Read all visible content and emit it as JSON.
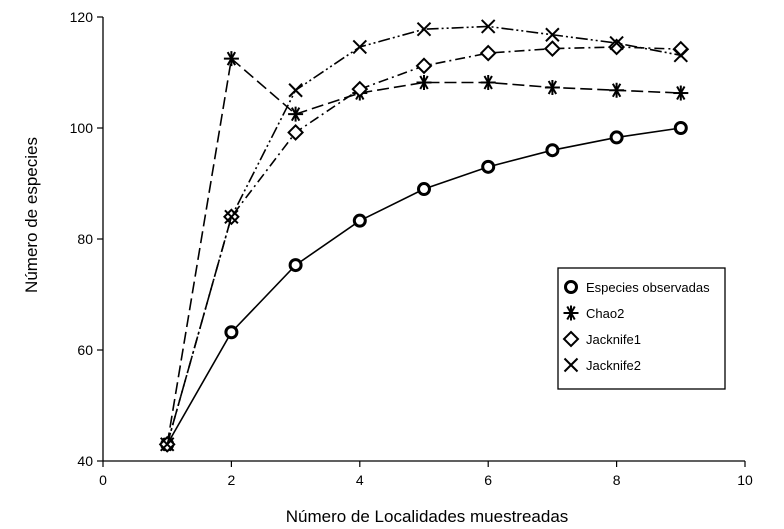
{
  "chart_data": {
    "type": "line",
    "title": "",
    "xlabel": "Número de Localidades muestreadas",
    "ylabel": "Número de especies",
    "xlim": [
      0,
      10
    ],
    "ylim": [
      40,
      120
    ],
    "xticks": [
      0,
      2,
      4,
      6,
      8,
      10
    ],
    "yticks": [
      40,
      60,
      80,
      100,
      120
    ],
    "grid": false,
    "legend_position": "right",
    "x": [
      1,
      2,
      3,
      4,
      5,
      6,
      7,
      8,
      9
    ],
    "series": [
      {
        "name": "Especies observadas",
        "marker": "circle",
        "line": "solid",
        "values": [
          43,
          63.2,
          75.3,
          83.3,
          89,
          93,
          96,
          98.3,
          100
        ]
      },
      {
        "name": "Chao2",
        "marker": "asterisk",
        "line": "dashed",
        "values": [
          43,
          112.5,
          102.5,
          106.3,
          108.2,
          108.2,
          107.3,
          106.8,
          106.3
        ]
      },
      {
        "name": "Jacknife1",
        "marker": "diamond",
        "line": "dashdot",
        "values": [
          43,
          84,
          99.2,
          107,
          111.2,
          113.5,
          114.3,
          114.6,
          114.2
        ]
      },
      {
        "name": "Jacknife2",
        "marker": "x",
        "line": "dashdotdot",
        "values": [
          43,
          84,
          106.8,
          114.6,
          117.8,
          118.3,
          116.8,
          115.3,
          113.1
        ]
      }
    ]
  }
}
